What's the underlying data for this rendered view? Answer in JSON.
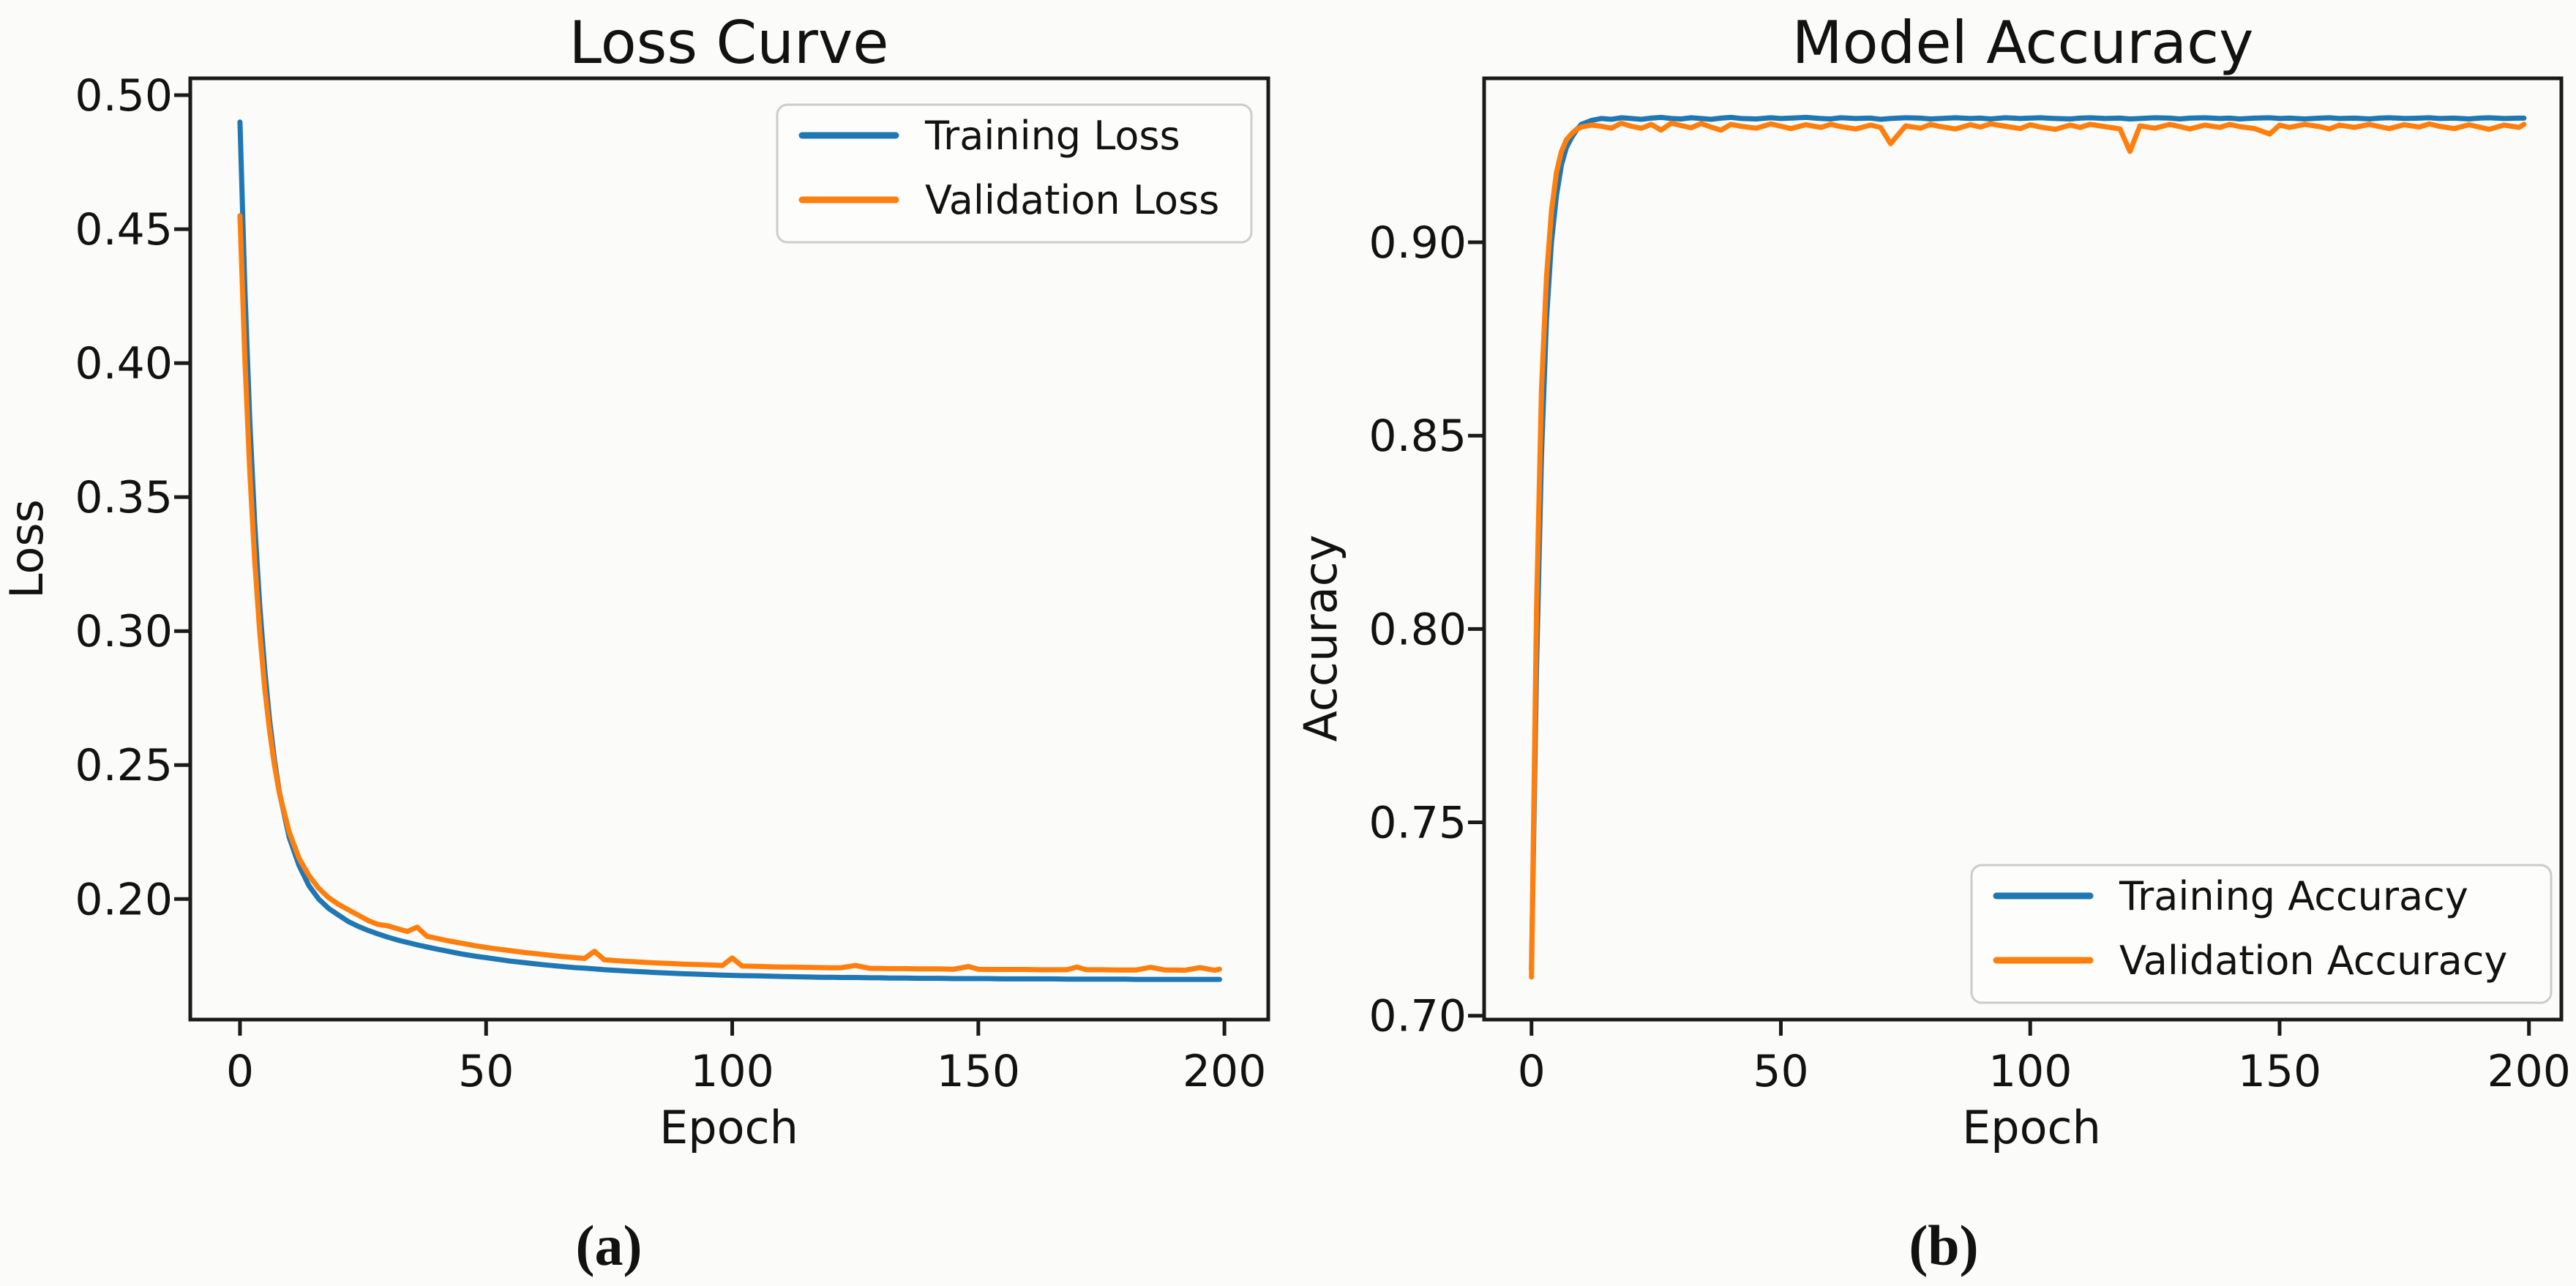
{
  "figure": {
    "name": "training-curves-figure",
    "captions": [
      {
        "label": "(a)"
      },
      {
        "label": "(b)"
      }
    ]
  },
  "colors": {
    "train_series": "#1f77b4",
    "val_series": "#ff7f0e",
    "axis": "#1a1a1a",
    "text": "#121212",
    "legend_border": "#cccccc",
    "legend_fill": "#fdfdfc",
    "background": "#fbfbf9"
  },
  "chart_data": [
    {
      "type": "line",
      "title": "Loss Curve",
      "xlabel": "Epoch",
      "ylabel": "Loss",
      "xlim": [
        -10.1,
        208.9
      ],
      "ylim": [
        0.155,
        0.5063
      ],
      "grid": false,
      "x_ticks": [
        {
          "v": 0,
          "label": "0"
        },
        {
          "v": 50,
          "label": "50"
        },
        {
          "v": 100,
          "label": "100"
        },
        {
          "v": 150,
          "label": "150"
        },
        {
          "v": 200,
          "label": "200"
        }
      ],
      "y_ticks": [
        {
          "v": 0.5,
          "label": "0.50"
        },
        {
          "v": 0.45,
          "label": "0.45"
        },
        {
          "v": 0.4,
          "label": "0.40"
        },
        {
          "v": 0.35,
          "label": "0.35"
        },
        {
          "v": 0.3,
          "label": "0.30"
        },
        {
          "v": 0.25,
          "label": "0.25"
        },
        {
          "v": 0.2,
          "label": "0.20"
        }
      ],
      "legend": {
        "position": "top-right",
        "entries": [
          {
            "label": "Training Loss",
            "color": "#1f77b4"
          },
          {
            "label": "Validation Loss",
            "color": "#ff7f0e"
          }
        ]
      },
      "x": [
        0,
        1,
        2,
        3,
        4,
        5,
        6,
        7,
        8,
        10,
        12,
        14,
        16,
        18,
        20,
        22,
        24,
        26,
        28,
        30,
        32,
        34,
        36,
        38,
        40,
        42,
        45,
        48,
        50,
        52,
        55,
        58,
        60,
        62,
        65,
        68,
        70,
        72,
        74,
        75,
        78,
        80,
        82,
        85,
        88,
        90,
        92,
        95,
        98,
        100,
        102,
        105,
        108,
        110,
        112,
        115,
        118,
        120,
        122,
        125,
        128,
        130,
        132,
        135,
        138,
        140,
        142,
        145,
        148,
        150,
        152,
        155,
        158,
        160,
        162,
        165,
        168,
        170,
        172,
        175,
        178,
        180,
        182,
        185,
        188,
        190,
        192,
        195,
        198,
        199
      ],
      "series": [
        {
          "name": "Training Loss",
          "color": "#1f77b4",
          "values": [
            0.49,
            0.427,
            0.378,
            0.34,
            0.31,
            0.286,
            0.267,
            0.252,
            0.24,
            0.223,
            0.2125,
            0.205,
            0.2,
            0.1965,
            0.194,
            0.1916,
            0.1898,
            0.1883,
            0.187,
            0.1858,
            0.1847,
            0.1838,
            0.1829,
            0.1821,
            0.1813,
            0.1806,
            0.1795,
            0.1786,
            0.1781,
            0.1776,
            0.1768,
            0.1762,
            0.1758,
            0.1754,
            0.1749,
            0.1744,
            0.1742,
            0.1739,
            0.1736,
            0.1735,
            0.1732,
            0.173,
            0.1728,
            0.1725,
            0.1723,
            0.1721,
            0.172,
            0.1718,
            0.1716,
            0.1715,
            0.1714,
            0.1713,
            0.1712,
            0.1711,
            0.171,
            0.1709,
            0.1708,
            0.1708,
            0.1707,
            0.1707,
            0.1706,
            0.1706,
            0.1705,
            0.1705,
            0.1704,
            0.1704,
            0.1704,
            0.1703,
            0.1703,
            0.1703,
            0.1703,
            0.1702,
            0.1702,
            0.1702,
            0.1702,
            0.1702,
            0.1701,
            0.1701,
            0.1701,
            0.1701,
            0.1701,
            0.1701,
            0.17,
            0.17,
            0.17,
            0.17,
            0.17,
            0.17,
            0.17,
            0.17
          ]
        },
        {
          "name": "Validation Loss",
          "color": "#ff7f0e",
          "values": [
            0.455,
            0.401,
            0.359,
            0.326,
            0.3,
            0.279,
            0.263,
            0.25,
            0.2396,
            0.225,
            0.2152,
            0.2088,
            0.204,
            0.2005,
            0.198,
            0.196,
            0.194,
            0.192,
            0.1905,
            0.19,
            0.1889,
            0.1879,
            0.1895,
            0.1861,
            0.1853,
            0.1845,
            0.1835,
            0.1825,
            0.1819,
            0.1814,
            0.1807,
            0.18,
            0.1796,
            0.1792,
            0.1786,
            0.1781,
            0.1778,
            0.1805,
            0.1773,
            0.1772,
            0.1768,
            0.1766,
            0.1764,
            0.1761,
            0.1759,
            0.1757,
            0.1756,
            0.1754,
            0.1752,
            0.178,
            0.175,
            0.1749,
            0.1747,
            0.1746,
            0.1746,
            0.1745,
            0.1744,
            0.1743,
            0.1743,
            0.1752,
            0.1741,
            0.1741,
            0.174,
            0.174,
            0.1739,
            0.1739,
            0.1739,
            0.1738,
            0.1748,
            0.1738,
            0.1737,
            0.1737,
            0.1737,
            0.1737,
            0.1736,
            0.1736,
            0.1736,
            0.1746,
            0.1736,
            0.1736,
            0.1735,
            0.1735,
            0.1735,
            0.1745,
            0.1735,
            0.1735,
            0.1734,
            0.1744,
            0.1734,
            0.1738
          ]
        }
      ]
    },
    {
      "type": "line",
      "title": "Model Accuracy",
      "xlabel": "Epoch",
      "ylabel": "Accuracy",
      "xlim": [
        -9.5,
        206.5
      ],
      "ylim": [
        0.699,
        0.9424
      ],
      "grid": false,
      "x_ticks": [
        {
          "v": 0,
          "label": "0"
        },
        {
          "v": 50,
          "label": "50"
        },
        {
          "v": 100,
          "label": "100"
        },
        {
          "v": 150,
          "label": "150"
        },
        {
          "v": 200,
          "label": "200"
        }
      ],
      "y_ticks": [
        {
          "v": 0.9,
          "label": "0.90"
        },
        {
          "v": 0.85,
          "label": "0.85"
        },
        {
          "v": 0.8,
          "label": "0.80"
        },
        {
          "v": 0.75,
          "label": "0.75"
        },
        {
          "v": 0.7,
          "label": "0.70"
        }
      ],
      "legend": {
        "position": "bottom-right",
        "entries": [
          {
            "label": "Training Accuracy",
            "color": "#1f77b4"
          },
          {
            "label": "Validation Accuracy",
            "color": "#ff7f0e"
          }
        ]
      },
      "x": [
        0,
        1,
        2,
        3,
        4,
        5,
        6,
        7,
        8,
        9,
        10,
        12,
        14,
        16,
        18,
        20,
        22,
        24,
        26,
        28,
        30,
        32,
        34,
        36,
        38,
        40,
        42,
        45,
        48,
        50,
        52,
        55,
        58,
        60,
        62,
        65,
        68,
        70,
        72,
        75,
        78,
        80,
        82,
        85,
        88,
        90,
        92,
        95,
        98,
        100,
        102,
        105,
        108,
        110,
        112,
        115,
        118,
        120,
        122,
        125,
        128,
        130,
        132,
        135,
        138,
        140,
        142,
        145,
        148,
        150,
        152,
        155,
        158,
        160,
        162,
        165,
        168,
        170,
        172,
        175,
        178,
        180,
        182,
        185,
        188,
        190,
        192,
        195,
        198,
        199
      ],
      "series": [
        {
          "name": "Training Accuracy",
          "color": "#1f77b4",
          "values": [
            0.712,
            0.79,
            0.845,
            0.88,
            0.9,
            0.912,
            0.92,
            0.9245,
            0.927,
            0.929,
            0.9305,
            0.9315,
            0.932,
            0.9318,
            0.9322,
            0.932,
            0.9318,
            0.9321,
            0.9323,
            0.932,
            0.9319,
            0.9322,
            0.932,
            0.9318,
            0.9321,
            0.9323,
            0.932,
            0.9319,
            0.9322,
            0.932,
            0.9321,
            0.9323,
            0.932,
            0.9319,
            0.9322,
            0.932,
            0.9321,
            0.9318,
            0.932,
            0.9322,
            0.9321,
            0.9319,
            0.932,
            0.9322,
            0.932,
            0.9321,
            0.9319,
            0.9322,
            0.932,
            0.9321,
            0.9322,
            0.932,
            0.9319,
            0.9321,
            0.9322,
            0.932,
            0.9321,
            0.9319,
            0.932,
            0.9322,
            0.9321,
            0.9319,
            0.9321,
            0.9322,
            0.932,
            0.9321,
            0.9319,
            0.9321,
            0.9322,
            0.932,
            0.9321,
            0.9319,
            0.9321,
            0.9322,
            0.932,
            0.9321,
            0.9319,
            0.9321,
            0.9322,
            0.932,
            0.9321,
            0.9322,
            0.932,
            0.9321,
            0.9319,
            0.9321,
            0.9322,
            0.932,
            0.9321,
            0.9321
          ]
        },
        {
          "name": "Validation Accuracy",
          "color": "#ff7f0e",
          "values": [
            0.71,
            0.805,
            0.862,
            0.891,
            0.908,
            0.918,
            0.9235,
            0.9265,
            0.928,
            0.9292,
            0.9298,
            0.9303,
            0.93,
            0.9295,
            0.9308,
            0.93,
            0.9295,
            0.9305,
            0.929,
            0.9308,
            0.9302,
            0.9296,
            0.9307,
            0.9298,
            0.929,
            0.9305,
            0.93,
            0.9295,
            0.9306,
            0.93,
            0.9294,
            0.9304,
            0.9297,
            0.9305,
            0.9299,
            0.9293,
            0.9303,
            0.9297,
            0.9255,
            0.9301,
            0.9295,
            0.9305,
            0.9299,
            0.9293,
            0.9304,
            0.9298,
            0.9306,
            0.93,
            0.9294,
            0.9304,
            0.9298,
            0.9292,
            0.9303,
            0.9297,
            0.9305,
            0.9299,
            0.9293,
            0.9235,
            0.9301,
            0.9295,
            0.9305,
            0.9299,
            0.9293,
            0.9303,
            0.9297,
            0.9305,
            0.9299,
            0.9294,
            0.928,
            0.9303,
            0.9297,
            0.9305,
            0.9299,
            0.9293,
            0.9303,
            0.9297,
            0.9305,
            0.9299,
            0.9294,
            0.9304,
            0.9298,
            0.9306,
            0.93,
            0.9294,
            0.9304,
            0.9298,
            0.9292,
            0.9303,
            0.9297,
            0.9305
          ]
        }
      ]
    }
  ]
}
